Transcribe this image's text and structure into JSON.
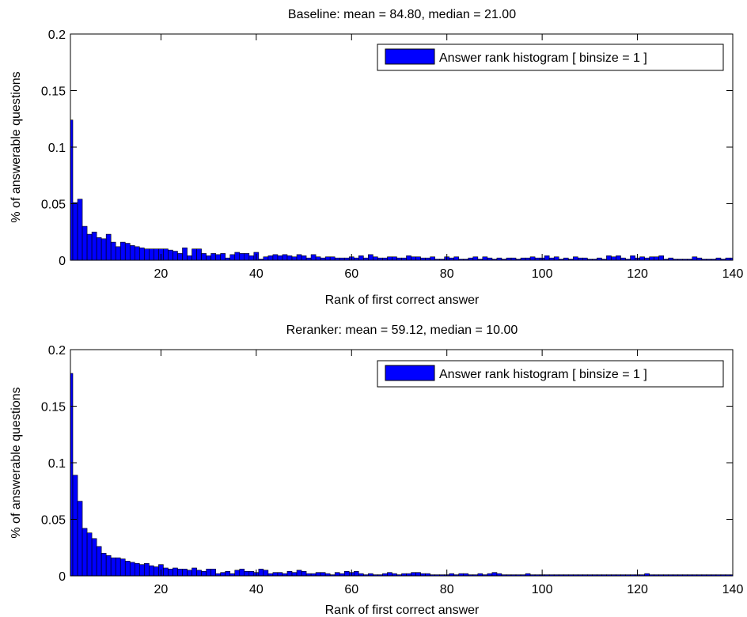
{
  "chart_data": [
    {
      "type": "bar",
      "title": "Baseline:  mean = 84.80, median = 21.00",
      "xlabel": "Rank of first correct answer",
      "ylabel": "% of answerable questions",
      "xlim": [
        1,
        140
      ],
      "ylim": [
        0,
        0.2
      ],
      "xticks": [
        20,
        40,
        60,
        80,
        100,
        120,
        140
      ],
      "yticks": [
        0,
        0.05,
        0.1,
        0.15,
        0.2
      ],
      "ytick_labels": [
        "0",
        "0.05",
        "0.1",
        "0.15",
        "0.2"
      ],
      "legend": {
        "label": "Answer rank histogram [ binsize = 1 ]",
        "position": "top-right"
      },
      "bar_color": "#0000ff",
      "x_start": 1,
      "values": [
        0.124,
        0.051,
        0.054,
        0.03,
        0.023,
        0.025,
        0.02,
        0.019,
        0.023,
        0.016,
        0.012,
        0.016,
        0.015,
        0.013,
        0.012,
        0.011,
        0.01,
        0.01,
        0.01,
        0.01,
        0.01,
        0.009,
        0.008,
        0.006,
        0.011,
        0.004,
        0.01,
        0.01,
        0.006,
        0.004,
        0.006,
        0.005,
        0.006,
        0.002,
        0.005,
        0.007,
        0.006,
        0.006,
        0.004,
        0.007,
        0.001,
        0.003,
        0.004,
        0.005,
        0.004,
        0.005,
        0.004,
        0.003,
        0.005,
        0.004,
        0.002,
        0.005,
        0.003,
        0.002,
        0.003,
        0.003,
        0.002,
        0.002,
        0.002,
        0.003,
        0.002,
        0.004,
        0.002,
        0.005,
        0.003,
        0.002,
        0.002,
        0.003,
        0.003,
        0.002,
        0.002,
        0.004,
        0.003,
        0.003,
        0.002,
        0.002,
        0.003,
        0.001,
        0.001,
        0.003,
        0.002,
        0.003,
        0.001,
        0.001,
        0.002,
        0.003,
        0.001,
        0.003,
        0.002,
        0.001,
        0.002,
        0.001,
        0.002,
        0.002,
        0.001,
        0.002,
        0.002,
        0.003,
        0.002,
        0.002,
        0.004,
        0.002,
        0.003,
        0.001,
        0.002,
        0.001,
        0.003,
        0.002,
        0.002,
        0.001,
        0.001,
        0.002,
        0.001,
        0.004,
        0.003,
        0.004,
        0.002,
        0.001,
        0.004,
        0.002,
        0.003,
        0.002,
        0.003,
        0.003,
        0.004,
        0.001,
        0.002,
        0.001,
        0.001,
        0.001,
        0.001,
        0.003,
        0.002,
        0.001,
        0.001,
        0.001,
        0.002,
        0.001,
        0.002,
        0.002
      ]
    },
    {
      "type": "bar",
      "title": "Reranker:  mean = 59.12, median = 10.00",
      "xlabel": "Rank of first correct answer",
      "ylabel": "% of answerable questions",
      "xlim": [
        1,
        140
      ],
      "ylim": [
        0,
        0.2
      ],
      "xticks": [
        20,
        40,
        60,
        80,
        100,
        120,
        140
      ],
      "yticks": [
        0,
        0.05,
        0.1,
        0.15,
        0.2
      ],
      "ytick_labels": [
        "0",
        "0.05",
        "0.1",
        "0.15",
        "0.2"
      ],
      "legend": {
        "label": "Answer rank histogram [ binsize = 1 ]",
        "position": "top-right"
      },
      "bar_color": "#0000ff",
      "x_start": 1,
      "values": [
        0.179,
        0.089,
        0.066,
        0.042,
        0.038,
        0.033,
        0.026,
        0.02,
        0.018,
        0.016,
        0.016,
        0.015,
        0.013,
        0.012,
        0.011,
        0.01,
        0.011,
        0.009,
        0.008,
        0.01,
        0.007,
        0.006,
        0.007,
        0.006,
        0.006,
        0.005,
        0.007,
        0.005,
        0.004,
        0.006,
        0.006,
        0.002,
        0.003,
        0.004,
        0.002,
        0.005,
        0.006,
        0.004,
        0.004,
        0.003,
        0.006,
        0.005,
        0.002,
        0.003,
        0.003,
        0.002,
        0.004,
        0.003,
        0.005,
        0.004,
        0.002,
        0.002,
        0.003,
        0.003,
        0.002,
        0.001,
        0.003,
        0.002,
        0.004,
        0.003,
        0.004,
        0.002,
        0.001,
        0.002,
        0.001,
        0.001,
        0.002,
        0.003,
        0.002,
        0.001,
        0.002,
        0.002,
        0.003,
        0.003,
        0.002,
        0.002,
        0.001,
        0.001,
        0.001,
        0.001,
        0.002,
        0.001,
        0.002,
        0.002,
        0.001,
        0.001,
        0.002,
        0.001,
        0.002,
        0.003,
        0.002,
        0.001,
        0.001,
        0.001,
        0.001,
        0.001,
        0.002,
        0.001,
        0.001,
        0.001,
        0.001,
        0.001,
        0.001,
        0.001,
        0.001,
        0.001,
        0.001,
        0.001,
        0.001,
        0.001,
        0.001,
        0.001,
        0.001,
        0.001,
        0.001,
        0.001,
        0.001,
        0.001,
        0.001,
        0.001,
        0.001,
        0.002,
        0.001,
        0.001,
        0.001,
        0.001,
        0.001,
        0.001,
        0.001,
        0.001,
        0.001,
        0.001,
        0.001,
        0.001,
        0.001,
        0.001,
        0.001,
        0.001,
        0.001,
        0.001
      ]
    }
  ]
}
